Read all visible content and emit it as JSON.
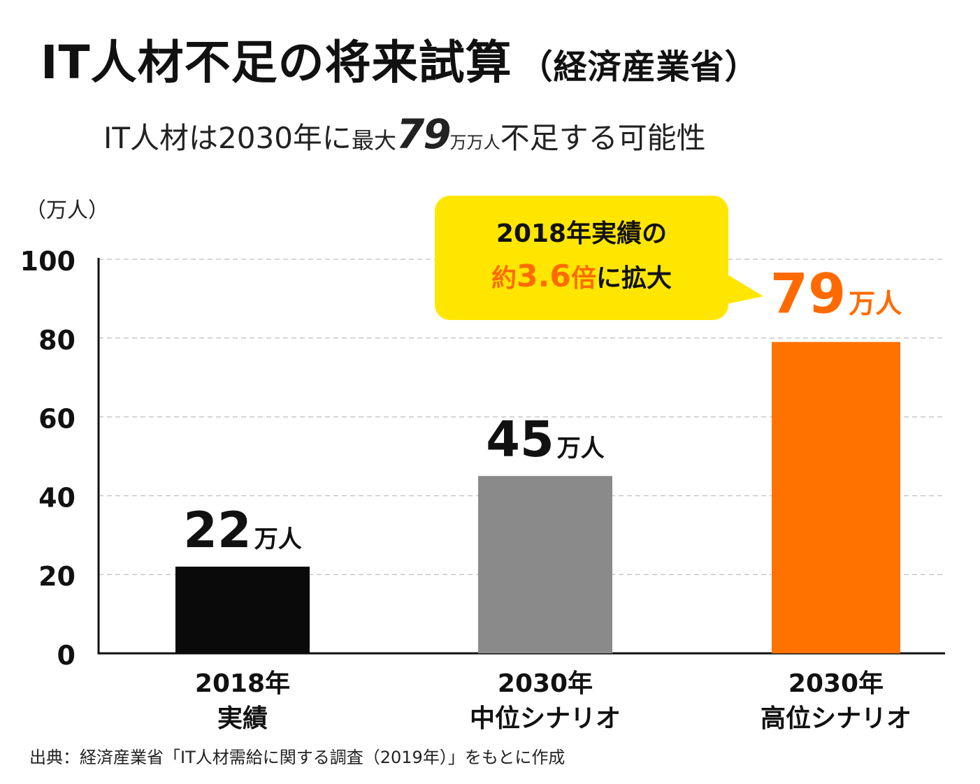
{
  "title": "IT人材不足の将来試算",
  "title_paren": "（経済産業省）",
  "subtitle": {
    "part1": "IT人材は2030年に",
    "part2": "最大",
    "part3": "79",
    "part4": "万万人",
    "part5": "不足する可能性"
  },
  "y_unit": "（万人）",
  "callout": {
    "line1": "2018年実績の",
    "prefix": "約",
    "ratio": "3.6",
    "ratio_suffix": "倍",
    "suffix": "に拡大",
    "bg_color": "#ffe600"
  },
  "source": "出典：経済産業省「IT人材需給に関する調査（2019年）」をもとに作成",
  "colors": {
    "bar_2018": "#0a0a0a",
    "bar_mid": "#8a8a8a",
    "bar_high": "#ff7200",
    "accent_orange": "#ff6a00",
    "grid": "#c8c8c8"
  },
  "chart_data": {
    "type": "bar",
    "title": "IT人材不足の将来試算（経済産業省）",
    "ylabel": "（万人）",
    "ylim": [
      0,
      100
    ],
    "yticks": [
      0,
      20,
      40,
      60,
      80,
      100
    ],
    "grid": true,
    "categories": [
      [
        "2018年",
        "実績"
      ],
      [
        "2030年",
        "中位シナリオ"
      ],
      [
        "2030年",
        "高位シナリオ"
      ]
    ],
    "values": [
      22,
      45,
      79
    ],
    "value_labels": [
      {
        "num": "22",
        "unit": "万人"
      },
      {
        "num": "45",
        "unit": "万人"
      },
      {
        "num": "79",
        "unit": "万人"
      }
    ],
    "bar_colors": [
      "#0a0a0a",
      "#8a8a8a",
      "#ff7200"
    ],
    "label_colors": [
      "#111111",
      "#111111",
      "#ff6a00"
    ]
  }
}
